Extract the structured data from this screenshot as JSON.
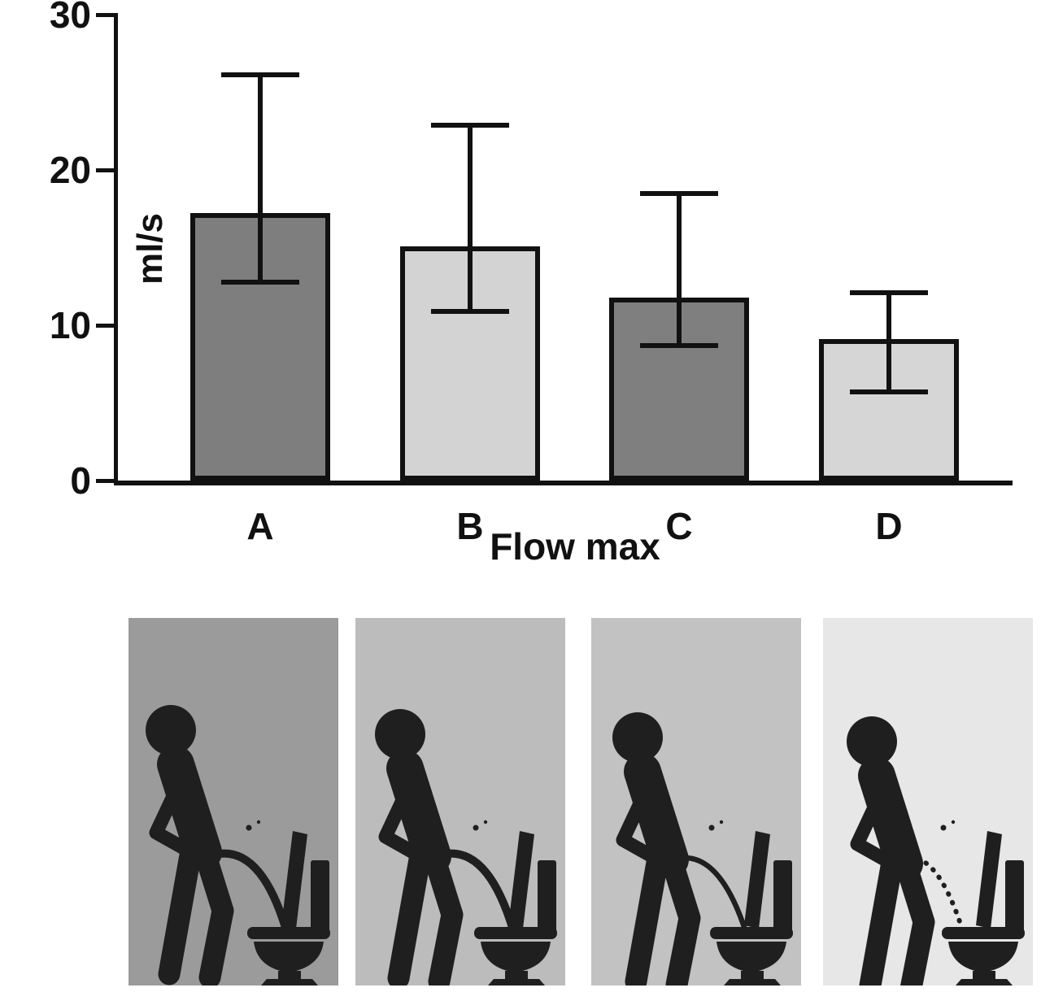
{
  "chart_data": {
    "type": "bar",
    "title": "",
    "xlabel": "Flow max",
    "ylabel": "ml/s",
    "categories": [
      "A",
      "B",
      "C",
      "D"
    ],
    "values": [
      17.2,
      15.1,
      11.8,
      9.1
    ],
    "error_upper": [
      26.1,
      22.9,
      18.5,
      12.1
    ],
    "error_lower": [
      12.8,
      10.9,
      8.7,
      5.7
    ],
    "ylim": [
      0,
      30
    ],
    "yticks": [
      0,
      10,
      20,
      30
    ],
    "ytick_labels": [
      "0",
      "10",
      "20",
      "30"
    ],
    "grid": false,
    "legend": "none",
    "bar_colors": [
      "#7e7e7e",
      "#d3d3d3",
      "#7f7f7f",
      "#d6d6d6"
    ],
    "bar_border_color": "#111111",
    "error_bar_color": "#111111"
  },
  "pictograms": {
    "figure_color": "#1f1f1f",
    "panels": [
      {
        "icon": "man-urinating-into-toilet-icon",
        "posture": "upright-lean",
        "stream": "strong",
        "background": "#9b9b9b"
      },
      {
        "icon": "man-urinating-into-toilet-icon",
        "posture": "slight-squat",
        "stream": "strong",
        "background": "#bcbcbc"
      },
      {
        "icon": "man-urinating-into-toilet-icon",
        "posture": "half-squat",
        "stream": "medium",
        "background": "#c2c2c2"
      },
      {
        "icon": "man-urinating-into-toilet-icon",
        "posture": "deep-squat",
        "stream": "dots",
        "background": "#e7e7e7"
      }
    ]
  }
}
